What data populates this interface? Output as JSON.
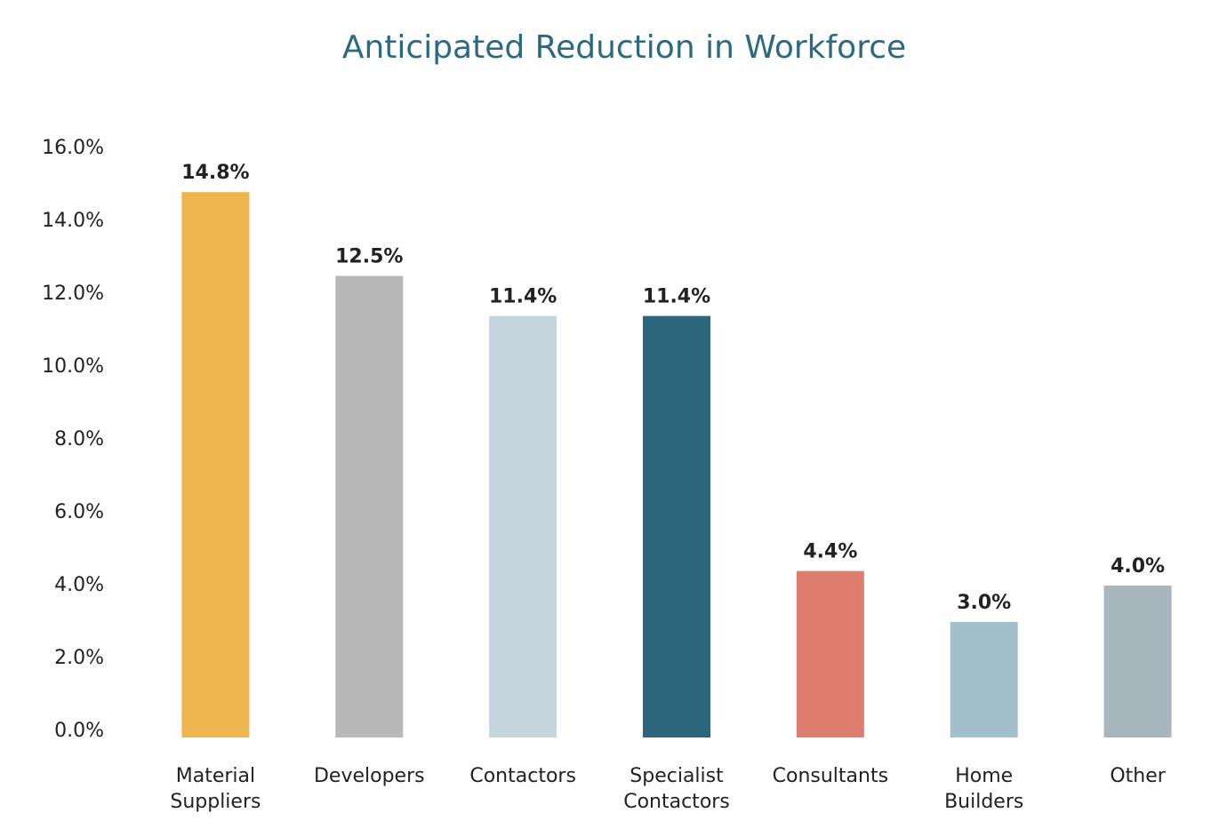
{
  "chart_data": {
    "type": "bar",
    "title": "Anticipated Reduction in Workforce",
    "categories": [
      "Material Suppliers",
      "Developers",
      "Contactors",
      "Specialist Contactors",
      "Consultants",
      "Home Builders",
      "Other"
    ],
    "values": [
      14.8,
      12.5,
      11.4,
      11.4,
      4.4,
      3.0,
      4.0
    ],
    "value_labels": [
      "14.8%",
      "12.5%",
      "11.4%",
      "11.4%",
      "4.4%",
      "3.0%",
      "4.0%"
    ],
    "colors": [
      "#edb54e",
      "#b8b8b8",
      "#c5d5dd",
      "#2b667c",
      "#de7e6e",
      "#a2c0cb",
      "#a8b7be"
    ],
    "ylim": [
      0,
      16
    ],
    "yticks": [
      {
        "value": 0,
        "label": "0.0%"
      },
      {
        "value": 2,
        "label": "2.0%"
      },
      {
        "value": 4,
        "label": "4.0%"
      },
      {
        "value": 6,
        "label": "6.0%"
      },
      {
        "value": 8,
        "label": "8.0%"
      },
      {
        "value": 10,
        "label": "10.0%"
      },
      {
        "value": 12,
        "label": "12.0%"
      },
      {
        "value": 14,
        "label": "14.0%"
      },
      {
        "value": 16,
        "label": "16.0%"
      }
    ],
    "grid": false
  }
}
